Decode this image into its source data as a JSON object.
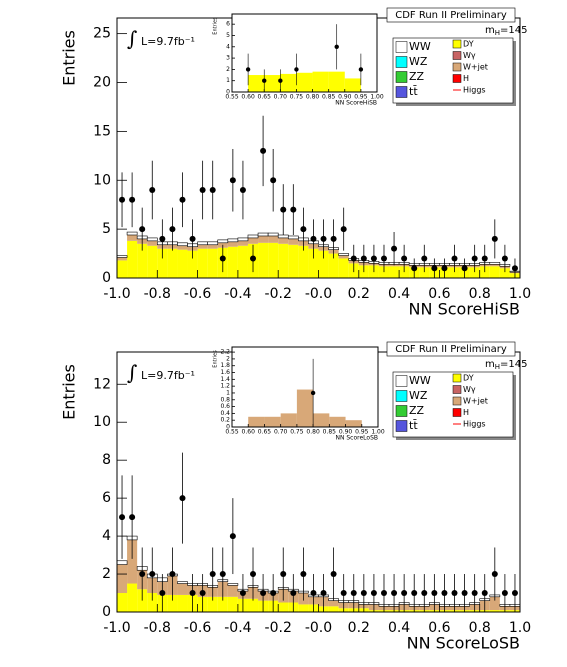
{
  "chart_data": [
    {
      "type": "hist_stack",
      "title": "CDF Run II Preliminary",
      "lumi_sign": "∫",
      "lumi": "L=9.7fb⁻¹",
      "mass_symbol": "m",
      "mass_sub": "H",
      "mass_value": "=145",
      "xlabel": "NN ScoreHiSB",
      "ylabel": "Entries",
      "bins": [
        -1,
        -0.95,
        -0.9,
        -0.85,
        -0.8,
        -0.75,
        -0.7,
        -0.65,
        -0.6,
        -0.55,
        -0.5,
        -0.45,
        -0.4,
        -0.35,
        -0.3,
        -0.25,
        -0.2,
        -0.15,
        -0.1,
        -0.05,
        0,
        0.05,
        0.1,
        0.15,
        0.2,
        0.25,
        0.3,
        0.35,
        0.4,
        0.45,
        0.5,
        0.55,
        0.6,
        0.65,
        0.7,
        0.75,
        0.8,
        0.85,
        0.9,
        0.95,
        1
      ],
      "stack": [
        {
          "color": "#ffff00",
          "values": [
            1.8,
            3.8,
            3.5,
            3.3,
            3.0,
            3.0,
            2.9,
            2.8,
            3.0,
            3.0,
            3.1,
            3.2,
            3.3,
            3.5,
            3.6,
            3.6,
            3.5,
            3.4,
            3.3,
            3.0,
            2.8,
            2.5,
            2.0,
            1.5,
            1.3,
            1.3,
            1.2,
            1.2,
            1.2,
            1.1,
            1.1,
            1.1,
            1.1,
            1.1,
            1.1,
            1.1,
            1.2,
            1.2,
            1.0,
            0.5
          ]
        },
        {
          "color": "#d8a878",
          "values": [
            0.3,
            0.6,
            0.5,
            0.5,
            0.4,
            0.4,
            0.4,
            0.4,
            0.4,
            0.4,
            0.5,
            0.5,
            0.5,
            0.6,
            0.7,
            0.7,
            0.6,
            0.6,
            0.5,
            0.5,
            0.4,
            0.4,
            0.3,
            0.3,
            0.3,
            0.2,
            0.2,
            0.2,
            0.2,
            0.2,
            0.2,
            0.2,
            0.2,
            0.2,
            0.2,
            0.2,
            0.2,
            0.2,
            0.2,
            0.1
          ]
        },
        {
          "color": "#ffffff",
          "values": [
            0.2,
            0.3,
            0.3,
            0.3,
            0.3,
            0.3,
            0.3,
            0.3,
            0.3,
            0.3,
            0.3,
            0.3,
            0.3,
            0.3,
            0.3,
            0.3,
            0.3,
            0.3,
            0.3,
            0.3,
            0.2,
            0.2,
            0.2,
            0.2,
            0.2,
            0.2,
            0.2,
            0.2,
            0.2,
            0.2,
            0.2,
            0.2,
            0.2,
            0.2,
            0.2,
            0.2,
            0.2,
            0.2,
            0.2,
            0.1
          ]
        }
      ],
      "data": {
        "values": [
          8,
          8,
          5,
          9,
          4,
          5,
          8,
          4,
          9,
          9,
          2,
          10,
          9,
          2,
          13,
          10,
          7,
          7,
          5,
          4,
          4,
          4,
          5,
          2,
          2,
          2,
          2,
          3,
          2,
          1,
          2,
          1,
          1,
          2,
          1,
          2,
          2,
          4,
          2,
          1
        ],
        "errors": [
          2.8,
          2.8,
          2.2,
          3,
          2,
          2.2,
          2.8,
          2,
          3,
          3,
          1.4,
          3.2,
          3,
          1.4,
          3.6,
          3.2,
          2.6,
          2.6,
          2.2,
          2,
          2,
          2,
          2.2,
          1.4,
          1.4,
          1.4,
          1.4,
          1.7,
          1.4,
          1,
          1.4,
          1,
          1,
          1.4,
          1,
          1.4,
          1.4,
          2,
          1.4,
          1
        ]
      },
      "xlim": [
        -1,
        1
      ],
      "xticks": [
        {
          "value": -1,
          "label": "-1.0"
        },
        -0.8,
        -0.6,
        -0.4,
        -0.2,
        {
          "value": 0,
          "label": "-0.0"
        },
        0.2,
        0.4,
        0.6,
        0.8,
        {
          "value": 1,
          "label": "1.0"
        }
      ],
      "ylim": [
        0,
        26.6
      ],
      "yticks": [
        0,
        5,
        10,
        15,
        20,
        25
      ],
      "legend": [
        {
          "name": "WW",
          "color": "#ffffff"
        },
        {
          "name": "WZ",
          "color": "#00ffff"
        },
        {
          "name": "ZZ",
          "color": "#33cc33"
        },
        {
          "name": "tt̄",
          "color": "#5555dd"
        },
        {
          "name": "DY",
          "color": "#ffff00"
        },
        {
          "name": "Wγ",
          "color": "#c86464"
        },
        {
          "name": "W+jet",
          "color": "#d8a878"
        },
        {
          "name": "H",
          "color": "#ff0000"
        },
        {
          "name": "Higgs",
          "color": "#ff0000",
          "style": "line"
        }
      ]
    },
    {
      "type": "hist_stack",
      "xlabel": "NN ScoreHiSB",
      "ylabel": "Entries",
      "bins": [
        0.6,
        0.65,
        0.7,
        0.75,
        0.8,
        0.85,
        0.9,
        0.95
      ],
      "stack": [
        {
          "color": "#ffff00",
          "values": [
            1.5,
            1.5,
            1.6,
            1.7,
            1.8,
            1.8,
            1.2
          ]
        }
      ],
      "data": {
        "x": [
          0.6,
          0.65,
          0.7,
          0.75,
          0.875,
          0.95
        ],
        "values": [
          2,
          1,
          1,
          2,
          4,
          2
        ],
        "errors": [
          1.4,
          1,
          1,
          1.4,
          2,
          1.4
        ]
      },
      "xlim": [
        0.55,
        1
      ],
      "xticks": [
        0.55,
        {
          "value": 0.6,
          "label": "0.60"
        },
        0.65,
        {
          "value": 0.7,
          "label": "0.70"
        },
        0.75,
        {
          "value": 0.8,
          "label": "0.80"
        },
        0.85,
        {
          "value": 0.9,
          "label": "0.90"
        },
        0.95,
        {
          "value": 1,
          "label": "1.00"
        }
      ],
      "ylim": [
        0,
        6.9
      ],
      "yticks": [
        0,
        1,
        2,
        3,
        4,
        5,
        6
      ]
    },
    {
      "type": "hist_stack",
      "title": "CDF Run II Preliminary",
      "lumi_sign": "∫",
      "lumi": "L=9.7fb⁻¹",
      "mass_symbol": "m",
      "mass_sub": "H",
      "mass_value": "=145",
      "xlabel": "NN ScoreLoSB",
      "ylabel": "Entries",
      "bins": [
        -1,
        -0.95,
        -0.9,
        -0.85,
        -0.8,
        -0.75,
        -0.7,
        -0.65,
        -0.6,
        -0.55,
        -0.5,
        -0.45,
        -0.4,
        -0.35,
        -0.3,
        -0.25,
        -0.2,
        -0.15,
        -0.1,
        -0.05,
        0,
        0.05,
        0.1,
        0.15,
        0.2,
        0.25,
        0.3,
        0.35,
        0.4,
        0.45,
        0.5,
        0.55,
        0.6,
        0.65,
        0.7,
        0.75,
        0.8,
        0.85,
        0.9,
        0.95,
        1
      ],
      "stack": [
        {
          "color": "#ffff00",
          "values": [
            1.0,
            1.5,
            1.2,
            1.0,
            0.9,
            0.9,
            0.9,
            0.9,
            0.8,
            0.8,
            0.8,
            0.8,
            0.7,
            0.7,
            0.6,
            0.6,
            0.5,
            0.5,
            0.4,
            0.4,
            0.3,
            0.3,
            0.2,
            0.2,
            0.2,
            0.1,
            0.1,
            0.1,
            0.1,
            0.1,
            0.1,
            0.1,
            0.1,
            0.1,
            0.1,
            0.1,
            0.1,
            0.1,
            0.1,
            0.1
          ]
        },
        {
          "color": "#d8a878",
          "values": [
            1.5,
            2.3,
            1.0,
            0.8,
            0.7,
            1.0,
            0.6,
            0.5,
            0.6,
            0.5,
            0.8,
            0.6,
            0.4,
            0.6,
            0.5,
            0.4,
            0.7,
            0.6,
            0.6,
            0.4,
            0.5,
            0.3,
            0.3,
            0.3,
            0.2,
            0.3,
            0.2,
            0.2,
            0.3,
            0.2,
            0.2,
            0.3,
            0.2,
            0.2,
            0.2,
            0.3,
            0.5,
            0.7,
            0.2,
            0.2
          ]
        },
        {
          "color": "#ffffff",
          "values": [
            0.2,
            0.2,
            0.2,
            0.2,
            0.2,
            0.1,
            0.1,
            0.1,
            0.1,
            0.1,
            0.1,
            0.1,
            0.1,
            0.1,
            0.1,
            0.1,
            0.1,
            0.1,
            0.1,
            0.1,
            0.1,
            0.1,
            0.1,
            0.1,
            0.1,
            0.1,
            0.1,
            0.1,
            0.1,
            0.1,
            0.1,
            0.1,
            0.1,
            0.1,
            0.1,
            0.1,
            0.1,
            0.1,
            0.1,
            0.1
          ]
        }
      ],
      "data": {
        "values": [
          5,
          5,
          2,
          2,
          1,
          2,
          6,
          1,
          1,
          2,
          2,
          4,
          1,
          2,
          1,
          1,
          2,
          1,
          2,
          1,
          1,
          2,
          1,
          1,
          1,
          1,
          1,
          1,
          1,
          1,
          1,
          1,
          1,
          1,
          1,
          1,
          1,
          2,
          1,
          1
        ],
        "errors": [
          2.2,
          2.2,
          1.4,
          1.4,
          1,
          1.4,
          2.4,
          1,
          1,
          1.4,
          1.4,
          2,
          1,
          1.4,
          1,
          1,
          1.4,
          1,
          1.4,
          1,
          1,
          1.4,
          1,
          1,
          1,
          1,
          1,
          1,
          1,
          1,
          1,
          1,
          1,
          1,
          1,
          1,
          1,
          1.4,
          1,
          1
        ]
      },
      "xlim": [
        -1,
        1
      ],
      "xticks": [
        {
          "value": -1,
          "label": "-1.0"
        },
        -0.8,
        -0.6,
        -0.4,
        -0.2,
        {
          "value": 0,
          "label": "-0.0"
        },
        0.2,
        0.4,
        0.6,
        0.8,
        {
          "value": 1,
          "label": "1.0"
        }
      ],
      "ylim": [
        0,
        13.7
      ],
      "yticks": [
        0,
        2,
        4,
        6,
        8,
        10,
        12
      ],
      "legend": [
        {
          "name": "WW",
          "color": "#ffffff"
        },
        {
          "name": "WZ",
          "color": "#00ffff"
        },
        {
          "name": "ZZ",
          "color": "#33cc33"
        },
        {
          "name": "tt̄",
          "color": "#5555dd"
        },
        {
          "name": "DY",
          "color": "#ffff00"
        },
        {
          "name": "Wγ",
          "color": "#c86464"
        },
        {
          "name": "W+jet",
          "color": "#d8a878"
        },
        {
          "name": "H",
          "color": "#ff0000"
        },
        {
          "name": "Higgs",
          "color": "#ff0000",
          "style": "line"
        }
      ]
    },
    {
      "type": "hist_stack",
      "xlabel": "NN ScoreLoSB",
      "ylabel": "Entries",
      "bins": [
        0.6,
        0.65,
        0.7,
        0.75,
        0.8,
        0.85,
        0.9,
        0.95
      ],
      "stack": [
        {
          "color": "#d8a878",
          "values": [
            0.3,
            0.3,
            0.4,
            1.1,
            0.4,
            0.3,
            0.2
          ]
        }
      ],
      "data": {
        "x": [
          0.8
        ],
        "values": [
          1
        ],
        "errors": [
          1
        ]
      },
      "xlim": [
        0.55,
        1
      ],
      "xticks": [
        0.55,
        {
          "value": 0.6,
          "label": "0.60"
        },
        0.65,
        {
          "value": 0.7,
          "label": "0.70"
        },
        0.75,
        {
          "value": 0.8,
          "label": "0.80"
        },
        0.85,
        {
          "value": 0.9,
          "label": "0.90"
        },
        0.95,
        {
          "value": 1,
          "label": "1.00"
        }
      ],
      "ylim": [
        0,
        2.35
      ],
      "yticks": [
        0,
        0.2,
        0.4,
        0.6,
        0.8,
        1,
        1.2,
        1.4,
        1.6,
        1.8,
        2,
        2.2
      ]
    }
  ]
}
